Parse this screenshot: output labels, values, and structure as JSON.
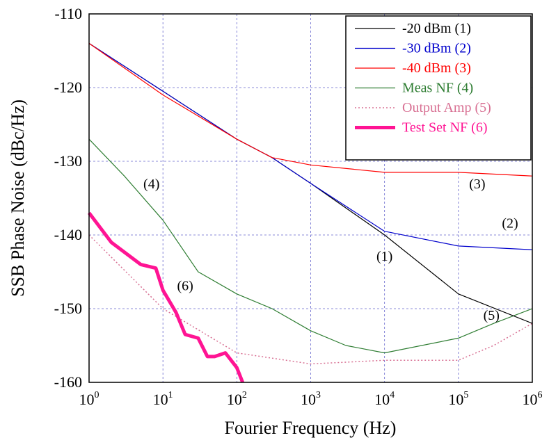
{
  "chart_data": {
    "type": "line",
    "xlabel": "Fourier Frequency (Hz)",
    "ylabel": "SSB Phase Noise (dBc/Hz)",
    "xscale": "log",
    "xlim": [
      1,
      1000000
    ],
    "ylim": [
      -160,
      -110
    ],
    "grid": true,
    "legend_position": "top-right",
    "x_ticks": [
      {
        "base": "10",
        "exp": "0"
      },
      {
        "base": "10",
        "exp": "1"
      },
      {
        "base": "10",
        "exp": "2"
      },
      {
        "base": "10",
        "exp": "3"
      },
      {
        "base": "10",
        "exp": "4"
      },
      {
        "base": "10",
        "exp": "5"
      },
      {
        "base": "10",
        "exp": "6"
      }
    ],
    "y_ticks": [
      "-160",
      "-150",
      "-140",
      "-130",
      "-120",
      "-110"
    ],
    "series": [
      {
        "name": "-20 dBm (1)",
        "color": "#000000",
        "style": "solid",
        "x": [
          1,
          10,
          100,
          300,
          1000,
          10000,
          100000,
          1000000
        ],
        "y": [
          -114,
          -120.5,
          -127,
          -129.5,
          -133,
          -140,
          -148,
          -152
        ]
      },
      {
        "name": "-30 dBm (2)",
        "color": "#0000cc",
        "style": "solid",
        "x": [
          1,
          10,
          100,
          300,
          1000,
          10000,
          100000,
          1000000
        ],
        "y": [
          -114,
          -120.5,
          -127,
          -129.5,
          -133,
          -139.5,
          -141.5,
          -142
        ]
      },
      {
        "name": "-40 dBm (3)",
        "color": "#ff0000",
        "style": "solid",
        "x": [
          1,
          10,
          100,
          300,
          1000,
          10000,
          100000,
          1000000
        ],
        "y": [
          -114,
          -121,
          -127,
          -129.5,
          -130.5,
          -131.5,
          -131.5,
          -132
        ]
      },
      {
        "name": "Meas NF (4)",
        "color": "#2e7d32",
        "style": "solid",
        "x": [
          1,
          3,
          10,
          30,
          100,
          300,
          1000,
          3000,
          10000,
          100000,
          300000,
          1000000
        ],
        "y": [
          -127,
          -132,
          -138,
          -145,
          -148,
          -150,
          -153,
          -155,
          -156,
          -154,
          -152,
          -150
        ]
      },
      {
        "name": "Output Amp (5)",
        "color": "#d87093",
        "style": "dotted",
        "x": [
          1,
          10,
          100,
          1000,
          10000,
          100000,
          300000,
          1000000
        ],
        "y": [
          -140,
          -150,
          -156,
          -157.5,
          -157,
          -157,
          -155,
          -152
        ]
      },
      {
        "name": "Test Set NF (6)",
        "color": "#ff1493",
        "style": "thick",
        "x": [
          1,
          2,
          5,
          8,
          10,
          15,
          20,
          30,
          40,
          50,
          70,
          100,
          120
        ],
        "y": [
          -137,
          -141,
          -144,
          -144.5,
          -147.5,
          -150.5,
          -153.5,
          -154,
          -156.5,
          -156.5,
          -156,
          -158,
          -160
        ]
      }
    ],
    "annotations": [
      {
        "text": "(1)",
        "x": 10000,
        "y": -143.5
      },
      {
        "text": "(2)",
        "x": 500000,
        "y": -139
      },
      {
        "text": "(3)",
        "x": 180000,
        "y": -133.7
      },
      {
        "text": "(4)",
        "x": 7,
        "y": -133.7
      },
      {
        "text": "(5)",
        "x": 280000,
        "y": -151.5
      },
      {
        "text": "(6)",
        "x": 20,
        "y": -147.5
      }
    ]
  }
}
